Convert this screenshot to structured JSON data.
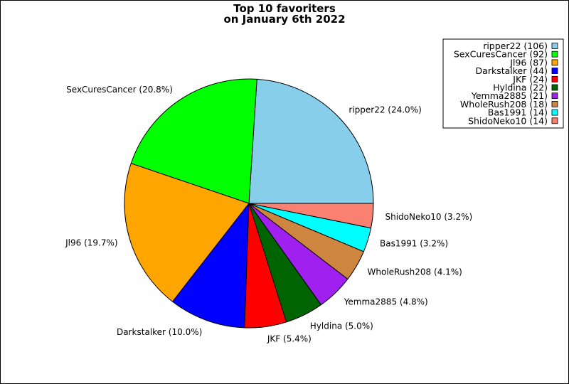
{
  "chart_data": {
    "type": "pie",
    "title": [
      "Top 10 favoriters",
      "on January 6th 2022"
    ],
    "legend_placement": "top-right",
    "slices": [
      {
        "label": "ripper22",
        "value": 106,
        "percent_label": "ripper22 (24.0%)",
        "legend_label": "ripper22 (106)",
        "color": "#87ceeb"
      },
      {
        "label": "SexCuresCancer",
        "value": 92,
        "percent_label": "SexCuresCancer (20.8%)",
        "legend_label": "SexCuresCancer (92)",
        "color": "#00ff00"
      },
      {
        "label": "Jl96",
        "value": 87,
        "percent_label": "Jl96 (19.7%)",
        "legend_label": "Jl96 (87)",
        "color": "#ffa500"
      },
      {
        "label": "Darkstalker",
        "value": 44,
        "percent_label": "Darkstalker (10.0%)",
        "legend_label": "Darkstalker (44)",
        "color": "#0000ff"
      },
      {
        "label": "JKF",
        "value": 24,
        "percent_label": "JKF (5.4%)",
        "legend_label": "JKF (24)",
        "color": "#ff0000"
      },
      {
        "label": "Hyldina",
        "value": 22,
        "percent_label": "Hyldina (5.0%)",
        "legend_label": "Hyldina (22)",
        "color": "#006400"
      },
      {
        "label": "Yemma2885",
        "value": 21,
        "percent_label": "Yemma2885 (4.8%)",
        "legend_label": "Yemma2885 (21)",
        "color": "#a020f0"
      },
      {
        "label": "WholeRush208",
        "value": 18,
        "percent_label": "WholeRush208 (4.1%)",
        "legend_label": "WholeRush208 (18)",
        "color": "#cd853f"
      },
      {
        "label": "Bas1991",
        "value": 14,
        "percent_label": "Bas1991 (3.2%)",
        "legend_label": "Bas1991 (14)",
        "color": "#00ffff"
      },
      {
        "label": "ShidoNeko10",
        "value": 14,
        "percent_label": "ShidoNeko10 (3.2%)",
        "legend_label": "ShidoNeko10 (14)",
        "color": "#fa8072"
      }
    ]
  }
}
